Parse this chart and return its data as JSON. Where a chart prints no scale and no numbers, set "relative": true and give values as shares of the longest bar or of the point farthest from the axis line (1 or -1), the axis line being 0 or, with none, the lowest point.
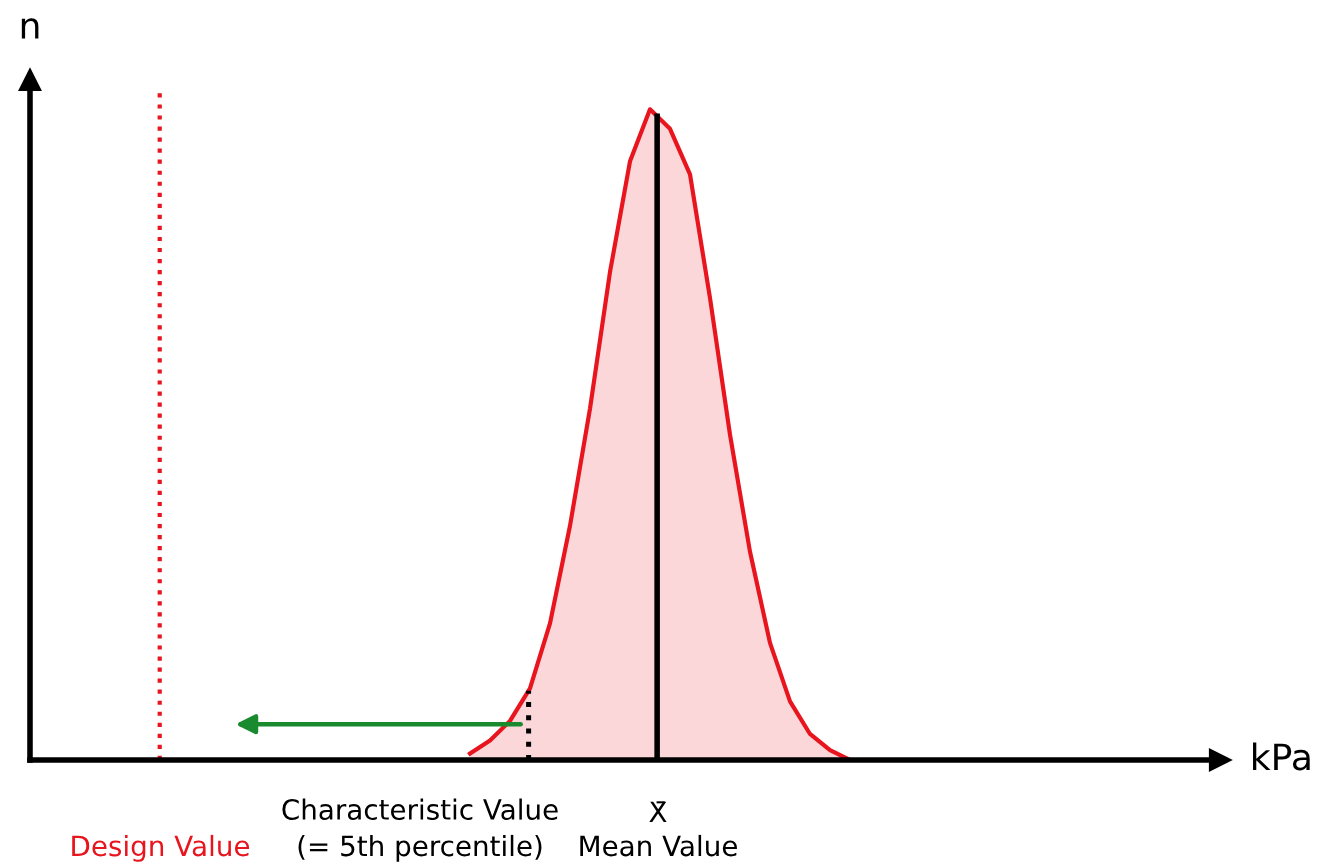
{
  "chart_data": {
    "type": "area",
    "relative": true,
    "xlabel": "kPa",
    "ylabel": "n",
    "categories": [
      null,
      null,
      null,
      null,
      null,
      null,
      null,
      null,
      null,
      null,
      null,
      null,
      null,
      null,
      null,
      null,
      null,
      null,
      null,
      null,
      null,
      null,
      null,
      null,
      null,
      null,
      null,
      null,
      null,
      null,
      null,
      null,
      null,
      null,
      null,
      null,
      null,
      null,
      null,
      null,
      null,
      null,
      null,
      null,
      null,
      null,
      null,
      null,
      null,
      null,
      null,
      null,
      null,
      null,
      null,
      null,
      null,
      null,
      null,
      null
    ],
    "series": [
      {
        "color": "#e8141e",
        "values": [
          null,
          null,
          null,
          null,
          null,
          null,
          null,
          null,
          null,
          null,
          null,
          null,
          null,
          null,
          null,
          null,
          null,
          null,
          null,
          null,
          null,
          null,
          0.01,
          0.03,
          0.06,
          0.11,
          0.21,
          0.36,
          0.54,
          0.75,
          0.92,
          1.0,
          0.97,
          0.9,
          0.71,
          0.5,
          0.32,
          0.18,
          0.09,
          0.04,
          0.015,
          0.0,
          null,
          null,
          null,
          null,
          null,
          null,
          null,
          null,
          null,
          null,
          null,
          null,
          null,
          null,
          null,
          null,
          null,
          null
        ]
      }
    ],
    "annotations": [
      "Design Value",
      "Characteristic Value\n(= 5th percentile)",
      "X̄",
      "Mean Value"
    ]
  }
}
